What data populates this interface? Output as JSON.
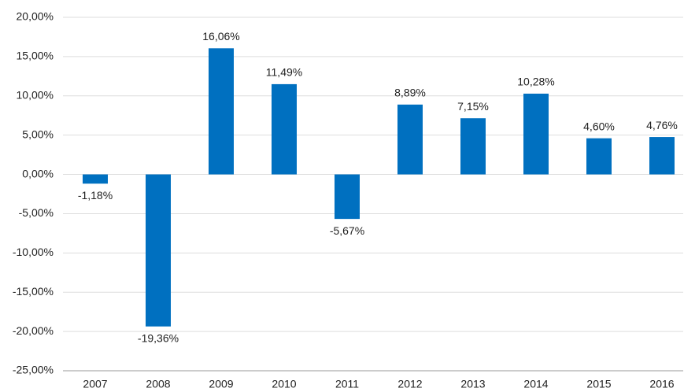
{
  "chart_data": {
    "type": "bar",
    "categories": [
      "2007",
      "2008",
      "2009",
      "2010",
      "2011",
      "2012",
      "2013",
      "2014",
      "2015",
      "2016"
    ],
    "values": [
      -1.18,
      -19.36,
      16.06,
      11.49,
      -5.67,
      8.89,
      7.15,
      10.28,
      4.6,
      4.76
    ],
    "value_labels": [
      "-1,18%",
      "-19,36%",
      "16,06%",
      "11,49%",
      "-5,67%",
      "8,89%",
      "7,15%",
      "10,28%",
      "4,60%",
      "4,76%"
    ],
    "color": "#0070c0",
    "ylim": [
      -25,
      20
    ],
    "yticks": [
      {
        "value": -25,
        "label": "-25,00%"
      },
      {
        "value": -20,
        "label": "-20,00%"
      },
      {
        "value": -15,
        "label": "-15,00%"
      },
      {
        "value": -10,
        "label": "-10,00%"
      },
      {
        "value": -5,
        "label": "-5,00%"
      },
      {
        "value": 0,
        "label": "0,00%"
      },
      {
        "value": 5,
        "label": "5,00%"
      },
      {
        "value": 10,
        "label": "10,00%"
      },
      {
        "value": 15,
        "label": "15,00%"
      },
      {
        "value": 20,
        "label": "20,00%"
      }
    ],
    "grid": true
  }
}
